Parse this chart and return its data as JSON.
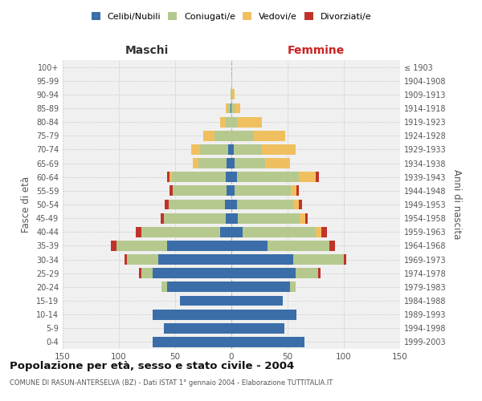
{
  "age_groups": [
    "0-4",
    "5-9",
    "10-14",
    "15-19",
    "20-24",
    "25-29",
    "30-34",
    "35-39",
    "40-44",
    "45-49",
    "50-54",
    "55-59",
    "60-64",
    "65-69",
    "70-74",
    "75-79",
    "80-84",
    "85-89",
    "90-94",
    "95-99",
    "100+"
  ],
  "birth_years": [
    "1999-2003",
    "1994-1998",
    "1989-1993",
    "1984-1988",
    "1979-1983",
    "1974-1978",
    "1969-1973",
    "1964-1968",
    "1959-1963",
    "1954-1958",
    "1949-1953",
    "1944-1948",
    "1939-1943",
    "1934-1938",
    "1929-1933",
    "1924-1928",
    "1919-1923",
    "1914-1918",
    "1909-1913",
    "1904-1908",
    "≤ 1903"
  ],
  "male_celibi": [
    70,
    60,
    70,
    46,
    57,
    70,
    65,
    57,
    10,
    5,
    6,
    4,
    5,
    4,
    3,
    0,
    0,
    1,
    0,
    0,
    0
  ],
  "male_coniugati": [
    0,
    0,
    0,
    0,
    5,
    10,
    28,
    45,
    70,
    55,
    50,
    48,
    48,
    25,
    25,
    15,
    5,
    2,
    1,
    0,
    0
  ],
  "male_vedovi": [
    0,
    0,
    0,
    0,
    0,
    0,
    0,
    0,
    0,
    0,
    0,
    0,
    2,
    5,
    8,
    10,
    5,
    2,
    0,
    0,
    0
  ],
  "male_divorziati": [
    0,
    0,
    0,
    0,
    0,
    2,
    2,
    5,
    5,
    3,
    3,
    3,
    2,
    0,
    0,
    0,
    0,
    0,
    0,
    0,
    0
  ],
  "female_nubili": [
    65,
    47,
    58,
    46,
    52,
    57,
    55,
    32,
    10,
    6,
    5,
    3,
    5,
    3,
    2,
    0,
    0,
    0,
    0,
    0,
    0
  ],
  "female_coniugate": [
    0,
    0,
    0,
    0,
    5,
    20,
    45,
    55,
    65,
    55,
    50,
    50,
    55,
    27,
    25,
    20,
    5,
    3,
    1,
    0,
    0
  ],
  "female_vedove": [
    0,
    0,
    0,
    0,
    0,
    0,
    0,
    0,
    5,
    5,
    5,
    5,
    15,
    22,
    30,
    28,
    22,
    5,
    2,
    1,
    0
  ],
  "female_divorziate": [
    0,
    0,
    0,
    0,
    0,
    2,
    2,
    5,
    5,
    2,
    3,
    2,
    3,
    0,
    0,
    0,
    0,
    0,
    0,
    0,
    0
  ],
  "colors": {
    "celibi": "#3b6ea8",
    "coniugati": "#b5c98e",
    "vedovi": "#f0c060",
    "divorziati": "#c0332a"
  },
  "title": "Popolazione per età, sesso e stato civile - 2004",
  "subtitle": "COMUNE DI RASUN-ANTERSELVA (BZ) - Dati ISTAT 1° gennaio 2004 - Elaborazione TUTTITALIA.IT",
  "xlabel_left": "Maschi",
  "xlabel_right": "Femmine",
  "ylabel_left": "Fasce di età",
  "ylabel_right": "Anni di nascita",
  "xlim": 150,
  "background_color": "#ffffff",
  "plot_bg": "#f0f0f0",
  "grid_color": "#cccccc"
}
